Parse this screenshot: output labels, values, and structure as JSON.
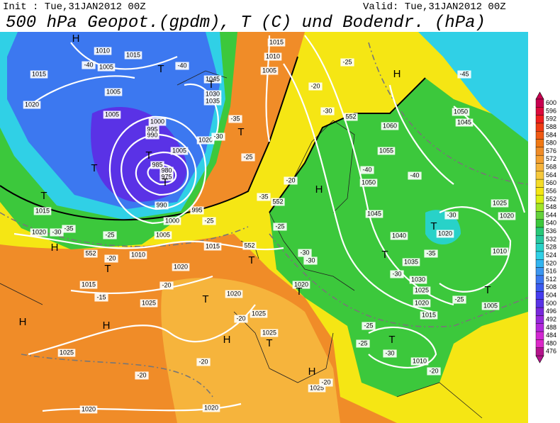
{
  "header": {
    "init": "Init : Tue,31JAN2012 00Z",
    "valid": "Valid: Tue,31JAN2012 00Z",
    "title": "500 hPa Geopot.(gpdm), T (C) und Bodendr. (hPa)"
  },
  "colorbar": {
    "ticks": [
      600,
      596,
      592,
      588,
      584,
      580,
      576,
      572,
      568,
      564,
      560,
      556,
      552,
      548,
      544,
      540,
      536,
      532,
      528,
      524,
      520,
      516,
      512,
      508,
      504,
      500,
      496,
      492,
      488,
      484,
      480,
      476
    ],
    "colors": [
      "#c80050",
      "#dc0a3c",
      "#f01e1e",
      "#f03c14",
      "#f05a14",
      "#f07814",
      "#f08c28",
      "#f5a032",
      "#f6b43c",
      "#f6c83c",
      "#f5dc28",
      "#f5e614",
      "#dcf014",
      "#a0e628",
      "#64d23c",
      "#3cc83c",
      "#28c878",
      "#28c8a0",
      "#28d2c8",
      "#30d0e6",
      "#32b4f0",
      "#3c96f0",
      "#3c78f0",
      "#3c5af0",
      "#463cf0",
      "#5a32e6",
      "#7828dc",
      "#9628dc",
      "#b428dc",
      "#d228d2",
      "#dc28c8",
      "#b4148c"
    ]
  },
  "map_labels": [
    "1010",
    "1015",
    "1005",
    "-40",
    "1005",
    "1015",
    "1020",
    "1005",
    "1000",
    "995",
    "990",
    "985",
    "980",
    "975",
    "990",
    "995",
    "1000",
    "1005",
    "1015",
    "1020",
    "-30",
    "-35",
    "-25",
    "-20",
    "1010",
    "1015",
    "1020",
    "1015",
    "-15",
    "1025",
    "-20",
    "1020",
    "1025",
    "1025",
    "-20",
    "1025",
    "-20",
    "-20",
    "1025",
    "-20",
    "1020",
    "1020",
    "-40",
    "1045",
    "1030",
    "1035",
    "-35",
    "1020",
    "1005",
    "-30",
    "-25",
    "-25",
    "1015",
    "1010",
    "1005",
    "-25",
    "-20",
    "-30",
    "1060",
    "1055",
    "1050",
    "1045",
    "1040",
    "1035",
    "1030",
    "1025",
    "1020",
    "1015",
    "-30",
    "-35",
    "-40",
    "-40",
    "-45",
    "1050",
    "1045",
    "1025",
    "1020",
    "1020",
    "-30",
    "1010",
    "1005",
    "-25",
    "-25",
    "-25",
    "-30",
    "1010",
    "-20",
    "-25",
    "-30",
    "-30",
    "-35",
    "1020",
    "-20",
    "552",
    "552",
    "552",
    "552",
    "H",
    "H",
    "H",
    "H",
    "H",
    "H",
    "H",
    "H",
    "T",
    "T",
    "T",
    "T",
    "T",
    "T",
    "T",
    "T",
    "T",
    "T",
    "T",
    "T",
    "T",
    "T",
    "T",
    "T"
  ]
}
